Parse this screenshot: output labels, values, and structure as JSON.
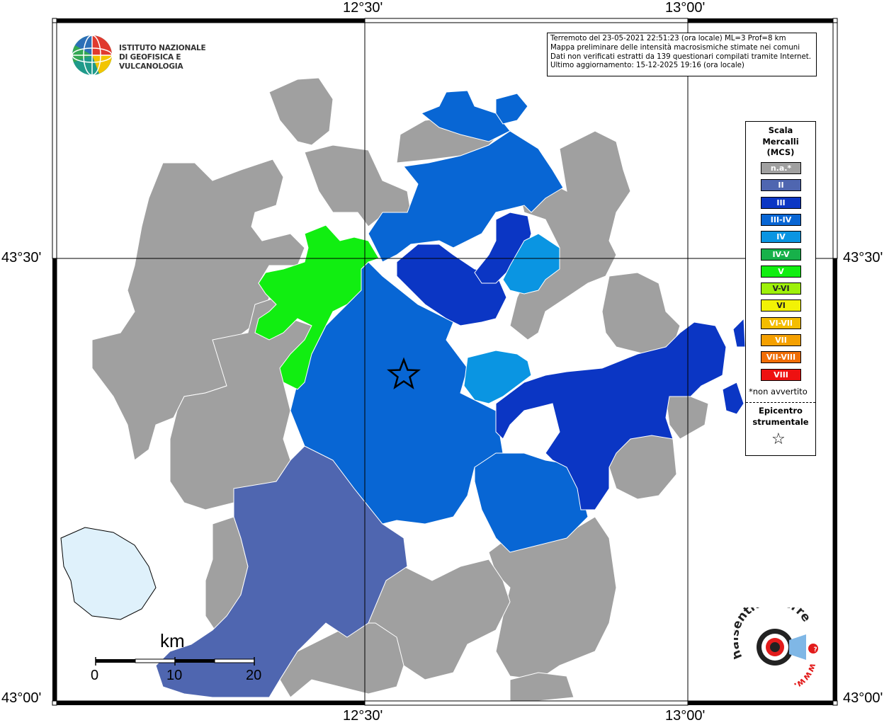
{
  "coordinates": {
    "lon_left": "12°30'",
    "lon_right": "13°00'",
    "lat_top": "43°30'",
    "lat_bottom": "43°00'"
  },
  "institute": {
    "line1": "ISTITUTO NAZIONALE",
    "line2": "DI GEOFISICA E VULCANOLOGIA"
  },
  "info_box": {
    "line1": "Terremoto del 23-05-2021 22:51:23 (ora locale) ML=3 Prof=8 km",
    "line2": "Mappa preliminare delle intensità macrosismiche stimate nei comuni",
    "line3": "Dati non verificati estratti da 139 questionari compilati tramite Internet.",
    "line4": "Ultimo aggiornamento: 15-12-2025 19:16 (ora locale)"
  },
  "legend": {
    "title_line1": "Scala",
    "title_line2": "Mercalli",
    "title_line3": "(MCS)",
    "items": [
      {
        "label": "n.a.*",
        "color": "#a0a0a0"
      },
      {
        "label": "II",
        "color": "#4f66b0"
      },
      {
        "label": "III",
        "color": "#0b36c4"
      },
      {
        "label": "III-IV",
        "color": "#0866d4"
      },
      {
        "label": "IV",
        "color": "#0a95e2"
      },
      {
        "label": "IV-V",
        "color": "#17b14a"
      },
      {
        "label": "V",
        "color": "#11ee11"
      },
      {
        "label": "V-VI",
        "color": "#9ef00a"
      },
      {
        "label": "VI",
        "color": "#f2f205"
      },
      {
        "label": "VI-VII",
        "color": "#f4bd00"
      },
      {
        "label": "VII",
        "color": "#f5a000"
      },
      {
        "label": "VII-VIII",
        "color": "#f06d06"
      },
      {
        "label": "VIII",
        "color": "#ee1111"
      }
    ],
    "note": "*non avvertito",
    "epicenter_line1": "Epicentro",
    "epicenter_line2": "strumentale",
    "star": "☆"
  },
  "scale_bar": {
    "unit": "km",
    "labels": [
      "0",
      "10",
      "20"
    ]
  },
  "colors": {
    "na": "#a0a0a0",
    "II": "#4f66b0",
    "III": "#0b36c4",
    "III_IV": "#0866d4",
    "IV": "#0a95e2",
    "V": "#11ee11",
    "lake": "#dff1fb"
  },
  "site_logo": {
    "text": "haisentitoilterremoto.it",
    "url_text": "www."
  }
}
